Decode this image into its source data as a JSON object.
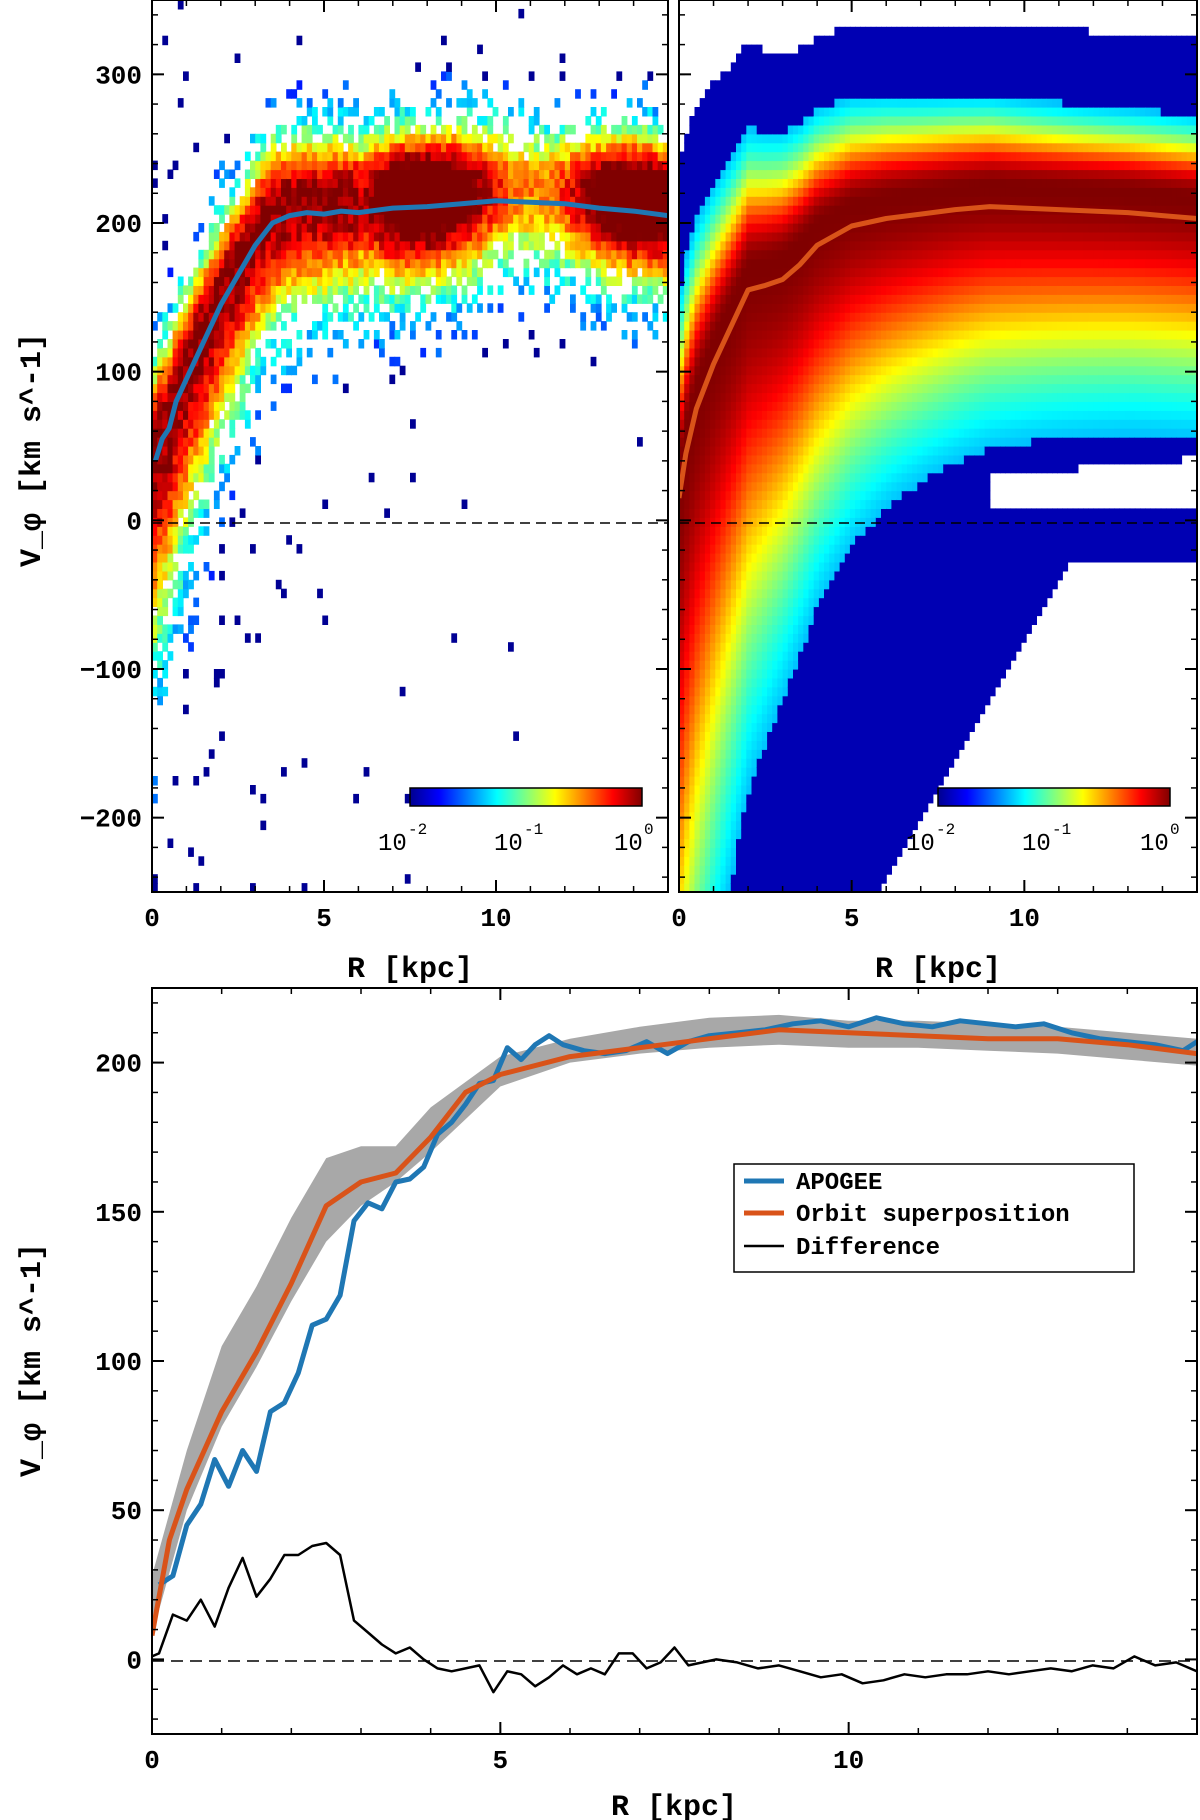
{
  "colors": {
    "apogee": "#1f77b4",
    "orbit": "#d95319",
    "difference": "#000000",
    "band": "#a8a8a8",
    "jet_low": "#00008b",
    "jet_high": "#800000"
  },
  "chart_data": [
    {
      "id": "top-left",
      "type": "heatmap",
      "title": "",
      "xlabel": "R [kpc]",
      "ylabel": "V_φ [km s^-1]",
      "xlim": [
        0,
        15
      ],
      "ylim": [
        -250,
        350
      ],
      "xticks": [
        "0",
        "5",
        "10"
      ],
      "yticks": [
        "300",
        "200",
        "100",
        "0",
        "-100",
        "-200"
      ],
      "zero_line": "dashed",
      "colorbar": {
        "scale": "log",
        "labels": [
          "10",
          "10",
          "10"
        ],
        "exponents": [
          "-2",
          "-1",
          "0"
        ],
        "placement": "bottom-right"
      },
      "median_line": {
        "name": "APOGEE median",
        "x": [
          0.1,
          0.3,
          0.5,
          0.7,
          1.0,
          1.3,
          1.6,
          2.0,
          2.5,
          3.0,
          3.5,
          4.0,
          4.5,
          5.0,
          5.5,
          6.0,
          7.0,
          8.0,
          9.0,
          10.0,
          11.0,
          12.0,
          13.0,
          14.0,
          15.0
        ],
        "y": [
          40,
          55,
          62,
          80,
          95,
          110,
          125,
          145,
          165,
          185,
          200,
          205,
          207,
          206,
          208,
          207,
          210,
          211,
          213,
          215,
          214,
          213,
          210,
          208,
          205
        ]
      }
    },
    {
      "id": "top-right",
      "type": "heatmap",
      "title": "",
      "xlabel": "R [kpc]",
      "ylabel": "",
      "xlim": [
        0,
        15
      ],
      "ylim": [
        -250,
        350
      ],
      "xticks": [
        "0",
        "5",
        "10"
      ],
      "yticks": [],
      "zero_line": "dashed",
      "colorbar": {
        "scale": "log",
        "labels": [
          "10",
          "10",
          "10"
        ],
        "exponents": [
          "-2",
          "-1",
          "0"
        ],
        "placement": "bottom-right"
      },
      "median_line": {
        "name": "Orbit superposition median",
        "x": [
          0.0,
          0.2,
          0.5,
          1.0,
          1.5,
          2.0,
          2.5,
          3.0,
          3.5,
          4.0,
          5.0,
          6.0,
          7.0,
          8.0,
          9.0,
          10.0,
          11.0,
          12.0,
          13.0,
          14.0,
          15.0
        ],
        "y": [
          15,
          45,
          75,
          105,
          130,
          155,
          158,
          162,
          172,
          185,
          198,
          203,
          206,
          209,
          211,
          210,
          209,
          208,
          207,
          205,
          203
        ]
      }
    },
    {
      "id": "bottom",
      "type": "line",
      "title": "",
      "xlabel": "R [kpc]",
      "ylabel": "V_φ [km s^-1]",
      "xlim": [
        0,
        15
      ],
      "ylim": [
        -25,
        225
      ],
      "xticks": [
        "0",
        "5",
        "10"
      ],
      "yticks": [
        "200",
        "150",
        "100",
        "50",
        "0"
      ],
      "zero_line": "dashed",
      "legend": {
        "placement": "center-right",
        "entries": [
          "APOGEE",
          "Orbit superposition",
          "Difference"
        ]
      },
      "band": {
        "x": [
          0,
          0.5,
          1,
          1.5,
          2,
          2.5,
          3,
          3.5,
          4,
          5,
          6,
          7,
          8,
          9,
          10,
          11,
          12,
          13,
          14,
          15
        ],
        "lower": [
          8,
          50,
          78,
          98,
          120,
          140,
          152,
          160,
          170,
          192,
          200,
          203,
          205,
          206,
          205,
          205,
          204,
          203,
          201,
          199
        ],
        "upper": [
          28,
          70,
          105,
          125,
          148,
          168,
          172,
          172,
          185,
          202,
          208,
          212,
          215,
          216,
          214,
          214,
          213,
          212,
          210,
          208
        ]
      },
      "series": [
        {
          "name": "APOGEE",
          "x": [
            0.1,
            0.3,
            0.5,
            0.7,
            0.9,
            1.1,
            1.3,
            1.5,
            1.7,
            1.9,
            2.1,
            2.3,
            2.5,
            2.7,
            2.9,
            3.1,
            3.3,
            3.5,
            3.7,
            3.9,
            4.1,
            4.3,
            4.5,
            4.7,
            4.9,
            5.1,
            5.3,
            5.5,
            5.7,
            5.9,
            6.2,
            6.5,
            6.8,
            7.1,
            7.4,
            7.7,
            8.0,
            8.4,
            8.8,
            9.2,
            9.6,
            10.0,
            10.4,
            10.8,
            11.2,
            11.6,
            12.0,
            12.4,
            12.8,
            13.2,
            13.6,
            14.0,
            14.4,
            14.8,
            15.0
          ],
          "y": [
            25,
            28,
            45,
            52,
            67,
            58,
            70,
            63,
            83,
            86,
            96,
            112,
            114,
            122,
            147,
            153,
            151,
            160,
            161,
            165,
            176,
            180,
            186,
            193,
            194,
            205,
            201,
            206,
            209,
            206,
            204,
            203,
            204,
            207,
            203,
            207,
            209,
            210,
            211,
            213,
            214,
            212,
            215,
            213,
            212,
            214,
            213,
            212,
            213,
            210,
            208,
            207,
            206,
            204,
            207
          ]
        },
        {
          "name": "Orbit superposition",
          "x": [
            0.0,
            0.25,
            0.5,
            1.0,
            1.5,
            2.0,
            2.5,
            3.0,
            3.5,
            4.0,
            4.5,
            5.0,
            6.0,
            7.0,
            8.0,
            9.0,
            10.0,
            11.0,
            12.0,
            13.0,
            14.0,
            15.0
          ],
          "y": [
            8,
            40,
            57,
            83,
            103,
            126,
            152,
            160,
            163,
            175,
            190,
            196,
            202,
            205,
            208,
            211,
            210,
            209,
            208,
            208,
            206,
            203
          ]
        },
        {
          "name": "Difference",
          "x": [
            0.0,
            0.1,
            0.3,
            0.5,
            0.7,
            0.9,
            1.1,
            1.3,
            1.5,
            1.7,
            1.9,
            2.1,
            2.3,
            2.5,
            2.7,
            2.9,
            3.1,
            3.3,
            3.5,
            3.7,
            3.9,
            4.1,
            4.3,
            4.5,
            4.7,
            4.9,
            5.1,
            5.3,
            5.5,
            5.7,
            5.9,
            6.1,
            6.3,
            6.5,
            6.7,
            6.9,
            7.1,
            7.3,
            7.5,
            7.7,
            7.9,
            8.1,
            8.4,
            8.7,
            9.0,
            9.3,
            9.6,
            9.9,
            10.2,
            10.5,
            10.8,
            11.1,
            11.4,
            11.7,
            12.0,
            12.3,
            12.6,
            12.9,
            13.2,
            13.5,
            13.8,
            14.1,
            14.4,
            14.7,
            15.0
          ],
          "y": [
            1,
            2,
            15,
            13,
            20,
            11,
            24,
            34,
            21,
            27,
            35,
            35,
            38,
            39,
            35,
            13,
            9,
            5,
            2,
            4,
            0,
            -3,
            -4,
            -3,
            -2,
            -11,
            -4,
            -5,
            -9,
            -6,
            -2,
            -5,
            -3,
            -5,
            2,
            2,
            -3,
            -1,
            4,
            -2,
            -1,
            0,
            -1,
            -3,
            -2,
            -4,
            -6,
            -5,
            -8,
            -7,
            -5,
            -6,
            -5,
            -5,
            -4,
            -5,
            -4,
            -3,
            -4,
            -2,
            -3,
            1,
            -2,
            -1,
            -4
          ]
        }
      ]
    }
  ]
}
